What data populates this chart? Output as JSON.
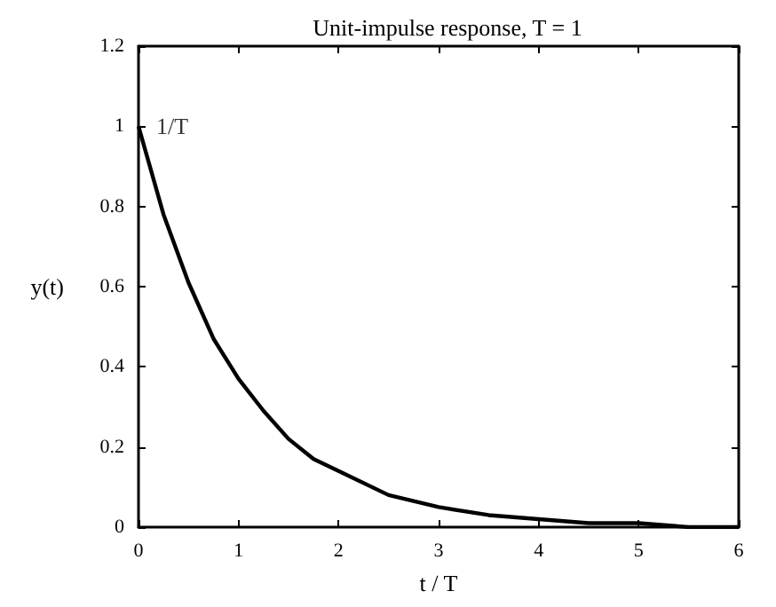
{
  "chart_data": {
    "type": "line",
    "title": "Unit-impulse response, T = 1",
    "xlabel": "t / T",
    "ylabel": "y(t)",
    "x": [
      0,
      0.25,
      0.5,
      0.75,
      1,
      1.25,
      1.5,
      1.75,
      2,
      2.5,
      3,
      3.5,
      4,
      4.5,
      5,
      5.5,
      6
    ],
    "series": [
      {
        "color": "#000000",
        "values": [
          1,
          0.78,
          0.61,
          0.47,
          0.37,
          0.29,
          0.22,
          0.17,
          0.14,
          0.08,
          0.05,
          0.03,
          0.02,
          0.01,
          0.01,
          0,
          0
        ]
      }
    ],
    "annotations": [
      {
        "text": "1/T",
        "x": 0,
        "y": 1
      }
    ],
    "xlim": [
      0,
      6
    ],
    "xticks": [
      0,
      1,
      2,
      3,
      4,
      5,
      6
    ],
    "ylim": [
      0,
      1.2
    ],
    "yticks": [
      0,
      0.2,
      0.4,
      0.6,
      0.8,
      1,
      1.2
    ],
    "grid": false,
    "marker": "none",
    "line_style": "solid"
  }
}
